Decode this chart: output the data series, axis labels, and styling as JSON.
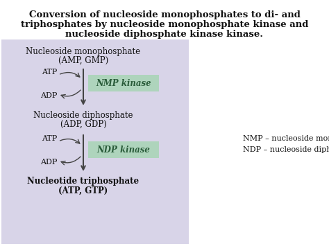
{
  "title_line1": "Conversion of nucleoside monophosphates to di- and",
  "title_line2": "triphosphates by nucleoside monophosphate kinase and",
  "title_line3": "nucleoside diphosphate kinase kinase.",
  "title_fontsize": 9.5,
  "white_bg": "#ffffff",
  "diagram_bg": "#d8d4e8",
  "box1_line1": "Nucleoside monophosphate",
  "box1_line2": "(AMP, GMP)",
  "box2_line1": "Nucleoside diphosphate",
  "box2_line2": "(ADP, GDP)",
  "box3_line1": "Nucleotide triphosphate",
  "box3_line2": "(ATP, GTP)",
  "nmp_kinase_label": "NMP kinase",
  "ndp_kinase_label": "NDP kinase",
  "kinase_bg": "#aed4bc",
  "kinase_text_color": "#2a5c3a",
  "atp_label": "ATP",
  "adp_label": "ADP",
  "legend_line1": "NMP – nucleoside monophosphate",
  "legend_line2": "NDP – nucleoside diphosphate",
  "arrow_color": "#444444",
  "text_color": "#111111",
  "diagram_text_color": "#111111",
  "label_fontsize": 8.5,
  "small_fontsize": 8.0,
  "legend_fontsize": 8.0
}
